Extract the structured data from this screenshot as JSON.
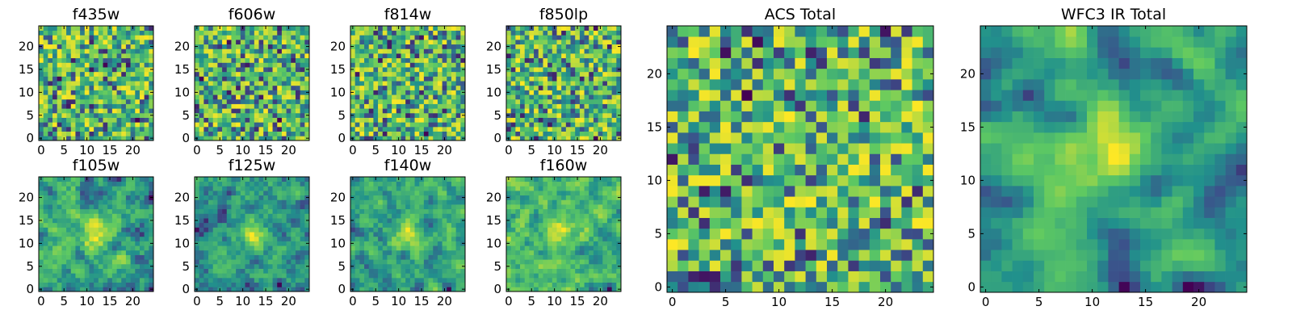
{
  "figure": {
    "colormap": "viridis",
    "colormap_stops": [
      "#440154",
      "#3b528b",
      "#21918c",
      "#5ec962",
      "#fde725"
    ]
  },
  "chart_data": [
    {
      "type": "heatmap",
      "title": "f435w",
      "grid_size": 25,
      "xticks": [
        "0",
        "5",
        "10",
        "15",
        "20"
      ],
      "yticks": [
        "0",
        "5",
        "10",
        "15",
        "20"
      ],
      "xlim": [
        0,
        24
      ],
      "ylim": [
        0,
        24
      ],
      "value_range": [
        0,
        1
      ],
      "seed": 11,
      "smoothing": 0
    },
    {
      "type": "heatmap",
      "title": "f606w",
      "grid_size": 25,
      "xticks": [
        "0",
        "5",
        "10",
        "15",
        "20"
      ],
      "yticks": [
        "0",
        "5",
        "10",
        "15",
        "20"
      ],
      "xlim": [
        0,
        24
      ],
      "ylim": [
        0,
        24
      ],
      "value_range": [
        0,
        1
      ],
      "seed": 23,
      "smoothing": 0
    },
    {
      "type": "heatmap",
      "title": "f814w",
      "grid_size": 25,
      "xticks": [
        "0",
        "5",
        "10",
        "15",
        "20"
      ],
      "yticks": [
        "0",
        "5",
        "10",
        "15",
        "20"
      ],
      "xlim": [
        0,
        24
      ],
      "ylim": [
        0,
        24
      ],
      "value_range": [
        0,
        1
      ],
      "seed": 37,
      "smoothing": 0
    },
    {
      "type": "heatmap",
      "title": "f850lp",
      "grid_size": 25,
      "xticks": [
        "0",
        "5",
        "10",
        "15",
        "20"
      ],
      "yticks": [
        "0",
        "5",
        "10",
        "15",
        "20"
      ],
      "xlim": [
        0,
        24
      ],
      "ylim": [
        0,
        24
      ],
      "value_range": [
        0,
        1
      ],
      "seed": 41,
      "smoothing": 0
    },
    {
      "type": "heatmap",
      "title": "f105w",
      "grid_size": 25,
      "xticks": [
        "0",
        "5",
        "10",
        "15",
        "20"
      ],
      "yticks": [
        "0",
        "5",
        "10",
        "15",
        "20"
      ],
      "xlim": [
        0,
        24
      ],
      "ylim": [
        0,
        24
      ],
      "value_range": [
        0,
        1
      ],
      "seed": 53,
      "smoothing": 1,
      "peak": [
        12,
        12
      ]
    },
    {
      "type": "heatmap",
      "title": "f125w",
      "grid_size": 25,
      "xticks": [
        "0",
        "5",
        "10",
        "15",
        "20"
      ],
      "yticks": [
        "0",
        "5",
        "10",
        "15",
        "20"
      ],
      "xlim": [
        0,
        24
      ],
      "ylim": [
        0,
        24
      ],
      "value_range": [
        0,
        1
      ],
      "seed": 67,
      "smoothing": 1,
      "peak": [
        12,
        12
      ]
    },
    {
      "type": "heatmap",
      "title": "f140w",
      "grid_size": 25,
      "xticks": [
        "0",
        "5",
        "10",
        "15",
        "20"
      ],
      "yticks": [
        "0",
        "5",
        "10",
        "15",
        "20"
      ],
      "xlim": [
        0,
        24
      ],
      "ylim": [
        0,
        24
      ],
      "value_range": [
        0,
        1
      ],
      "seed": 79,
      "smoothing": 1,
      "peak": [
        12,
        12
      ]
    },
    {
      "type": "heatmap",
      "title": "f160w",
      "grid_size": 25,
      "xticks": [
        "0",
        "5",
        "10",
        "15",
        "20"
      ],
      "yticks": [
        "0",
        "5",
        "10",
        "15",
        "20"
      ],
      "xlim": [
        0,
        24
      ],
      "ylim": [
        0,
        24
      ],
      "value_range": [
        0,
        1
      ],
      "seed": 83,
      "smoothing": 1,
      "peak": [
        12,
        12
      ]
    },
    {
      "type": "heatmap",
      "title": "ACS Total",
      "grid_size": 25,
      "xticks": [
        "0",
        "5",
        "10",
        "15",
        "20"
      ],
      "yticks": [
        "0",
        "5",
        "10",
        "15",
        "20"
      ],
      "xlim": [
        0,
        24
      ],
      "ylim": [
        0,
        24
      ],
      "value_range": [
        0,
        1
      ],
      "seed": 97,
      "smoothing": 0
    },
    {
      "type": "heatmap",
      "title": "WFC3 IR Total",
      "grid_size": 25,
      "xticks": [
        "0",
        "5",
        "10",
        "15",
        "20"
      ],
      "yticks": [
        "0",
        "5",
        "10",
        "15",
        "20"
      ],
      "xlim": [
        0,
        24
      ],
      "ylim": [
        0,
        24
      ],
      "value_range": [
        0,
        1
      ],
      "seed": 101,
      "smoothing": 2,
      "peak": [
        12,
        13
      ]
    }
  ]
}
